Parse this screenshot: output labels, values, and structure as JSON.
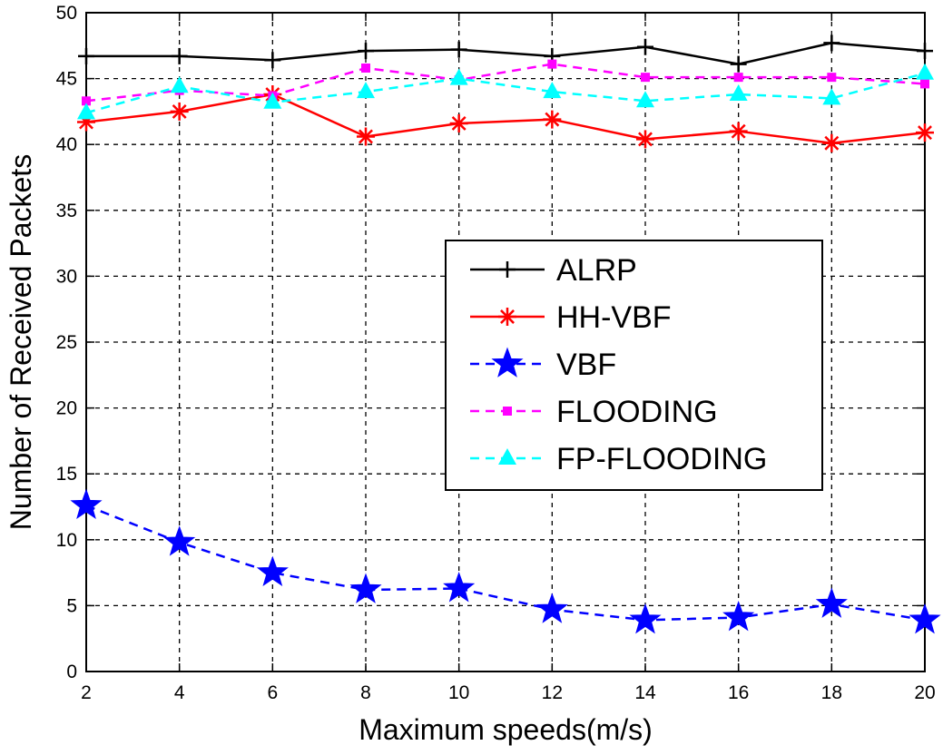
{
  "chart_data": {
    "type": "line",
    "title": "",
    "xlabel": "Maximum speeds(m/s)",
    "ylabel": "Number of Received Packets",
    "x": [
      2,
      4,
      6,
      8,
      10,
      12,
      14,
      16,
      18,
      20
    ],
    "xlim": [
      2,
      20
    ],
    "ylim": [
      0,
      50
    ],
    "xticks": [
      2,
      4,
      6,
      8,
      10,
      12,
      14,
      16,
      18,
      20
    ],
    "yticks": [
      0,
      5,
      10,
      15,
      20,
      25,
      30,
      35,
      40,
      45,
      50
    ],
    "grid": true,
    "legend_position": "center-right",
    "series": [
      {
        "name": "ALRP",
        "color": "#000000",
        "dash": "solid",
        "marker": "plus",
        "values": [
          46.7,
          46.7,
          46.4,
          47.1,
          47.2,
          46.7,
          47.4,
          46.1,
          47.7,
          47.1
        ]
      },
      {
        "name": "HH-VBF",
        "color": "#ff0000",
        "dash": "solid",
        "marker": "asterisk",
        "values": [
          41.7,
          42.5,
          43.8,
          40.6,
          41.6,
          41.9,
          40.4,
          41.0,
          40.1,
          40.9
        ]
      },
      {
        "name": "VBF",
        "color": "#0000ff",
        "dash": "dashed",
        "marker": "star",
        "values": [
          12.6,
          9.8,
          7.5,
          6.2,
          6.3,
          4.7,
          3.9,
          4.1,
          5.1,
          3.9
        ]
      },
      {
        "name": "FLOODING",
        "color": "#ff00ff",
        "dash": "dashed",
        "marker": "square",
        "values": [
          43.3,
          44.1,
          43.7,
          45.8,
          44.9,
          46.1,
          45.1,
          45.1,
          45.1,
          44.6
        ]
      },
      {
        "name": "FP-FLOODING",
        "color": "#00ffff",
        "dash": "dashed",
        "marker": "triangle",
        "values": [
          42.4,
          44.4,
          43.2,
          44.0,
          45.0,
          44.0,
          43.3,
          43.8,
          43.5,
          45.4
        ]
      }
    ]
  }
}
